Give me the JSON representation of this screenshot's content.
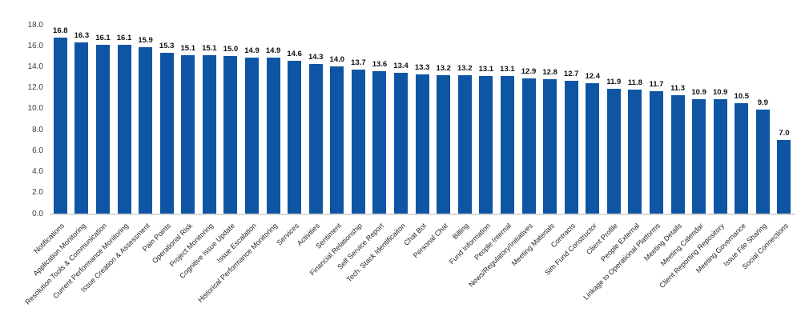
{
  "chart_data": {
    "type": "bar",
    "title": "",
    "xlabel": "",
    "ylabel": "",
    "categories": [
      "Notifications",
      "Application Monitoring",
      "Resolution Tools & Communication",
      "Current Performance Monitoring",
      "Issue Creation & Assessment",
      "Pain Points",
      "Operational Risk",
      "Project Monitoring",
      "Cognitive Issue Update",
      "Issue Escalation",
      "Historical Performance Monitoring",
      "Services",
      "Activities",
      "Sentiment",
      "Financial Relationship",
      "Self Service Report",
      "Tech. Stack Identificaiton",
      "Chat Bot",
      "Personal Chat",
      "Billing",
      "Fund Information",
      "People Internal",
      "News/Regulatory/Initiatives",
      "Meeting Materials",
      "Contracts",
      "Sim Fund Constructor",
      "Client Profile",
      "People External",
      "Linkage to Operational Platforms",
      "Meeting Details",
      "Meeting Calendar",
      "Client Reporting Repository",
      "Meeting Governance",
      "Issue File Sharing",
      "Social Connections"
    ],
    "values": [
      16.8,
      16.3,
      16.1,
      16.1,
      15.9,
      15.3,
      15.1,
      15.1,
      15.0,
      14.9,
      14.9,
      14.6,
      14.3,
      14.0,
      13.7,
      13.6,
      13.4,
      13.3,
      13.2,
      13.2,
      13.1,
      13.1,
      12.9,
      12.8,
      12.7,
      12.4,
      11.9,
      11.8,
      11.7,
      11.3,
      10.9,
      10.9,
      10.5,
      9.9,
      7.0
    ],
    "axis": {
      "ylim": [
        0,
        18
      ],
      "y_ticks": [
        "0.0",
        "2.0",
        "4.0",
        "6.0",
        "8.0",
        "10.0",
        "12.0",
        "14.0",
        "16.0",
        "18.0"
      ],
      "x_label_rotation_deg": 45,
      "grid": false,
      "legend": "none"
    },
    "colors": {
      "bar": "#0e56a4",
      "value_label": "#111111",
      "category_label": "#262626",
      "tick_label": "#404040",
      "baseline": "#d9d9d9",
      "background": "#ffffff"
    }
  }
}
